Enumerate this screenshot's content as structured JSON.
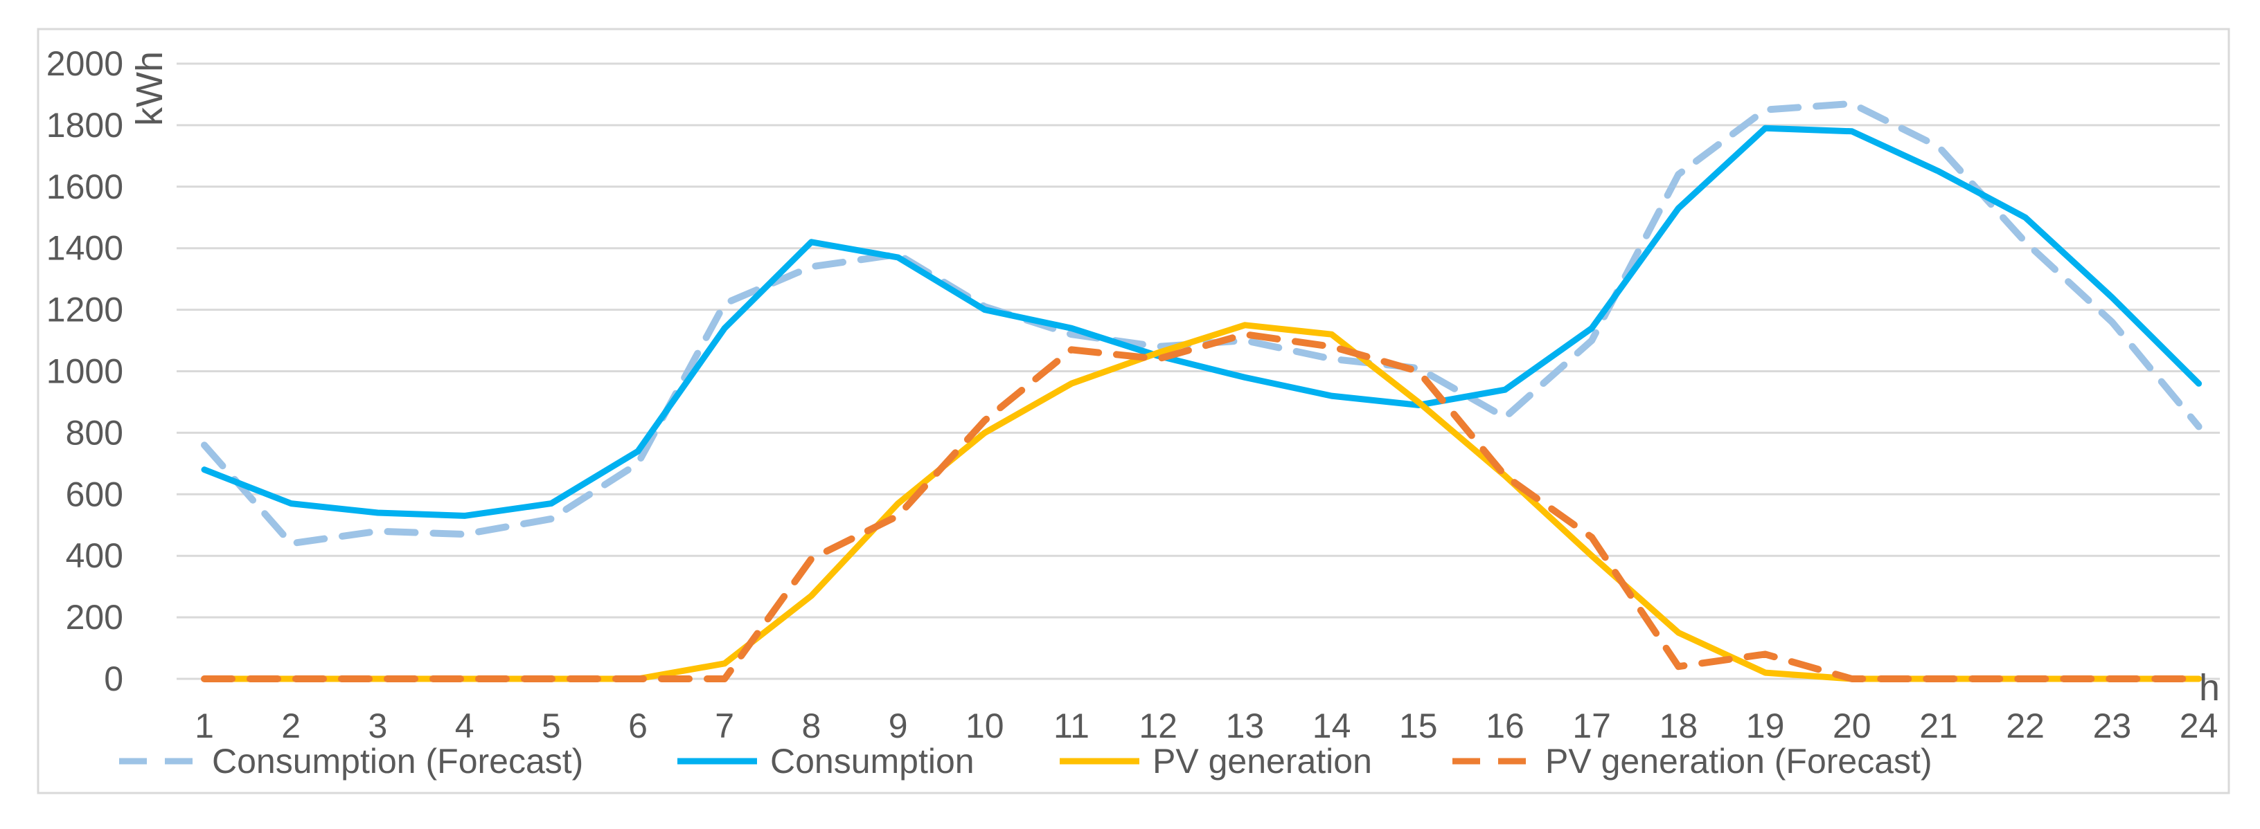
{
  "chart_data": {
    "type": "line",
    "title": "",
    "xlabel": "h",
    "ylabel": "kWh",
    "ylim": [
      0,
      2000
    ],
    "yticks": [
      0,
      200,
      400,
      600,
      800,
      1000,
      1200,
      1400,
      1600,
      1800,
      2000
    ],
    "grid": true,
    "legend_position": "bottom",
    "categories": [
      "1",
      "2",
      "3",
      "4",
      "5",
      "6",
      "7",
      "8",
      "9",
      "10",
      "11",
      "12",
      "13",
      "14",
      "15",
      "16",
      "17",
      "18",
      "19",
      "20",
      "21",
      "22",
      "23",
      "24"
    ],
    "series": [
      {
        "name": "Consumption (Forecast)",
        "color": "#9dc3e6",
        "style": "dashed",
        "values": [
          760,
          440,
          480,
          470,
          520,
          700,
          1220,
          1340,
          1380,
          1210,
          1120,
          1080,
          1100,
          1040,
          1010,
          850,
          1100,
          1640,
          1850,
          1870,
          1730,
          1420,
          1160,
          820
        ]
      },
      {
        "name": "Consumption",
        "color": "#00b0f0",
        "style": "solid",
        "values": [
          680,
          570,
          540,
          530,
          570,
          740,
          1140,
          1420,
          1370,
          1200,
          1140,
          1050,
          980,
          920,
          890,
          940,
          1140,
          1530,
          1790,
          1780,
          1650,
          1500,
          1240,
          960
        ]
      },
      {
        "name": "PV generation",
        "color": "#ffc000",
        "style": "solid",
        "values": [
          0,
          0,
          0,
          0,
          0,
          0,
          50,
          270,
          570,
          800,
          960,
          1060,
          1150,
          1120,
          900,
          660,
          400,
          150,
          20,
          0,
          0,
          0,
          0,
          0
        ]
      },
      {
        "name": "PV generation (Forecast)",
        "color": "#ed7d31",
        "style": "dashed",
        "values": [
          0,
          0,
          0,
          0,
          0,
          0,
          0,
          390,
          530,
          840,
          1070,
          1040,
          1120,
          1080,
          1000,
          660,
          460,
          40,
          80,
          0,
          0,
          0,
          0,
          0
        ]
      }
    ]
  }
}
